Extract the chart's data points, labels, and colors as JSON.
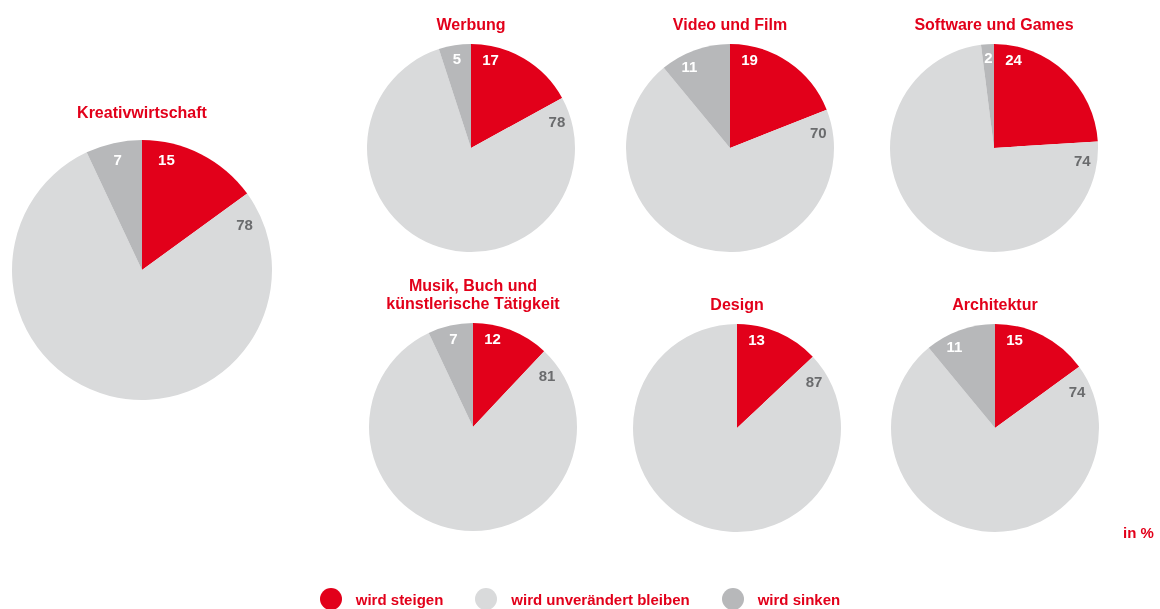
{
  "chart_data": [
    {
      "type": "pie",
      "title": "Kreativwirtschaft",
      "categories": [
        "wird steigen",
        "wird unverändert bleiben",
        "wird sinken"
      ],
      "values": [
        15,
        78,
        7
      ],
      "colors": [
        "#e2001a",
        "#d9dadb",
        "#b7b8ba"
      ],
      "data_labels": true,
      "legend": "bottom"
    },
    {
      "type": "pie",
      "title": "Werbung",
      "values": [
        17,
        78,
        5
      ],
      "colors": [
        "#e2001a",
        "#d9dadb",
        "#b7b8ba"
      ],
      "data_labels": true
    },
    {
      "type": "pie",
      "title": "Video und Film",
      "values": [
        19,
        70,
        11
      ],
      "colors": [
        "#e2001a",
        "#d9dadb",
        "#b7b8ba"
      ],
      "data_labels": true
    },
    {
      "type": "pie",
      "title": "Software und Games",
      "values": [
        24,
        74,
        2
      ],
      "colors": [
        "#e2001a",
        "#d9dadb",
        "#b7b8ba"
      ],
      "data_labels": true
    },
    {
      "type": "pie",
      "title": "Musik, Buch und künstlerische Tätigkeit",
      "values": [
        12,
        81,
        7
      ],
      "colors": [
        "#e2001a",
        "#d9dadb",
        "#b7b8ba"
      ],
      "data_labels": true
    },
    {
      "type": "pie",
      "title": "Design",
      "values": [
        13,
        87,
        null
      ],
      "colors": [
        "#e2001a",
        "#d9dadb",
        "#b7b8ba"
      ],
      "data_labels": true
    },
    {
      "type": "pie",
      "title": "Architektur",
      "values": [
        15,
        74,
        11
      ],
      "colors": [
        "#e2001a",
        "#d9dadb",
        "#b7b8ba"
      ],
      "data_labels": true,
      "annotations": [
        "in %"
      ]
    }
  ]
}
